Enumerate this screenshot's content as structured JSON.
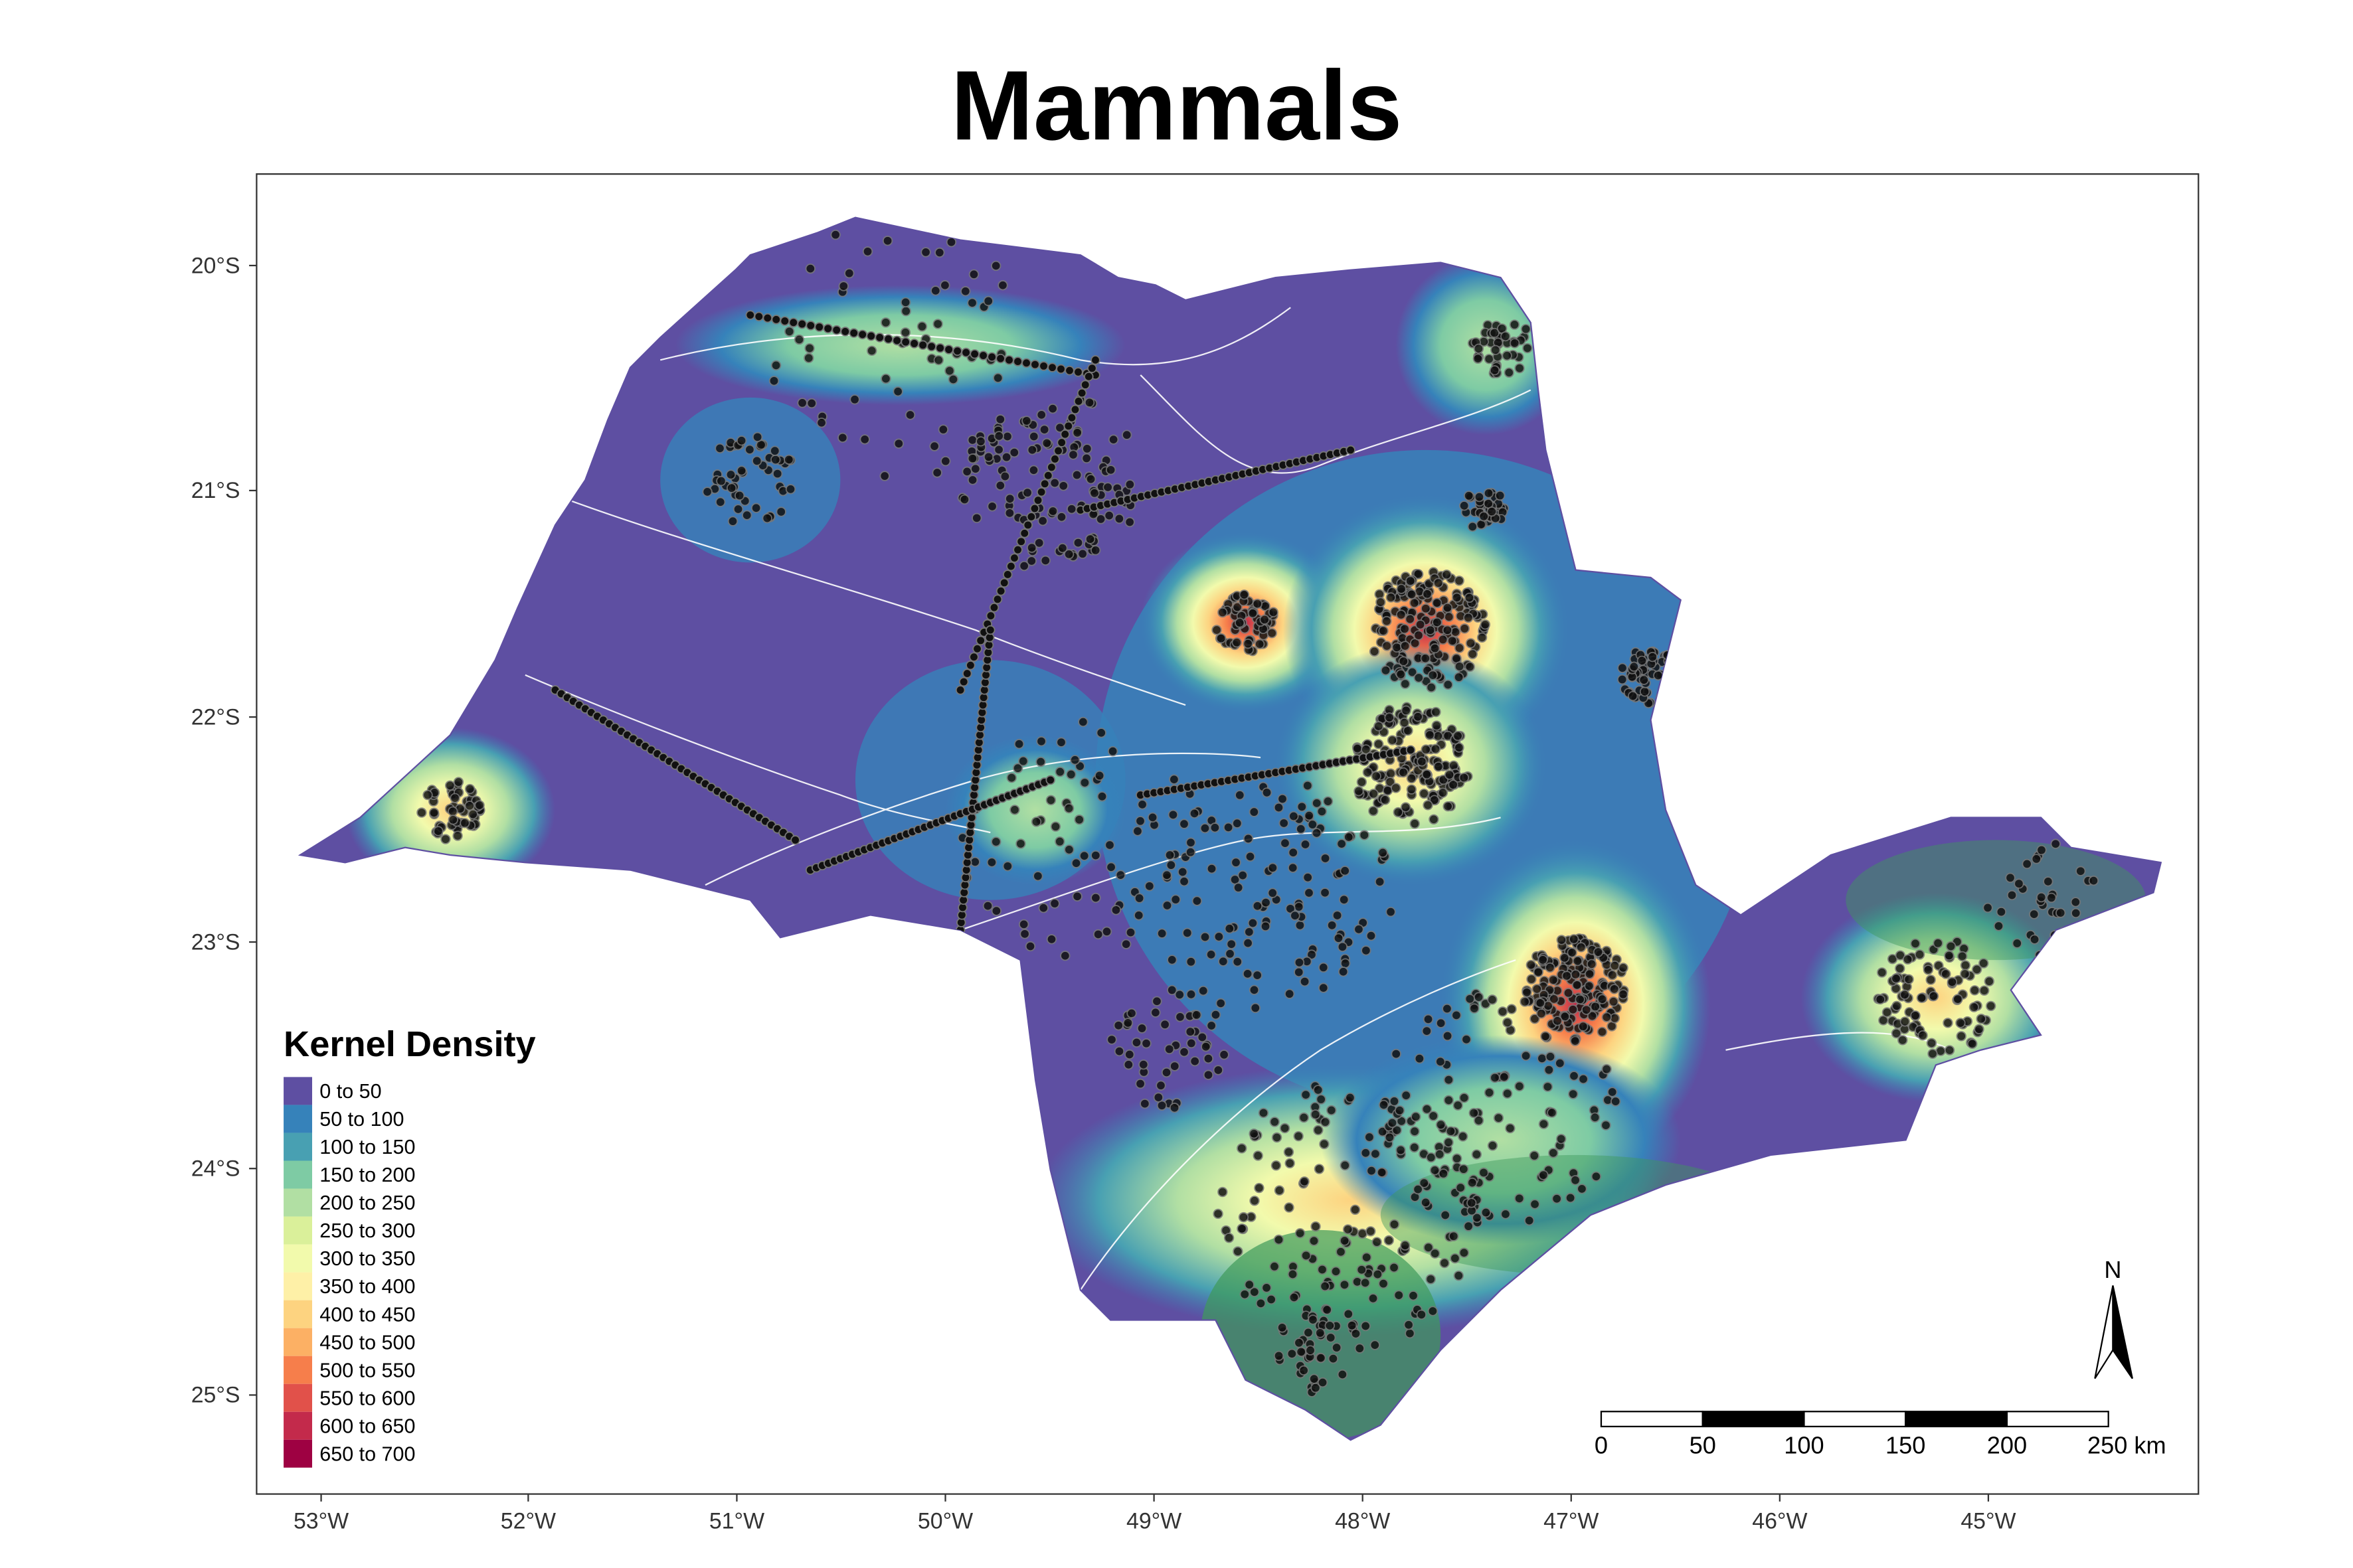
{
  "title": "Mammals",
  "axes": {
    "y_ticks": [
      "20°S",
      "21°S",
      "22°S",
      "23°S",
      "24°S",
      "25°S"
    ],
    "x_ticks": [
      "53°W",
      "52°W",
      "51°W",
      "50°W",
      "49°W",
      "48°W",
      "47°W",
      "46°W",
      "45°W"
    ]
  },
  "legend": {
    "title": "Kernel Density",
    "items": [
      {
        "label": "0 to 50",
        "color": "#5E4FA2"
      },
      {
        "label": "50 to 100",
        "color": "#3682BA"
      },
      {
        "label": "100 to 150",
        "color": "#48A0B2"
      },
      {
        "label": "150 to 200",
        "color": "#7ECBA4"
      },
      {
        "label": "200 to 250",
        "color": "#B1DFA3"
      },
      {
        "label": "250 to 300",
        "color": "#DAF09A"
      },
      {
        "label": "300 to 350",
        "color": "#F2FAAC"
      },
      {
        "label": "350 to 400",
        "color": "#FEF0A7"
      },
      {
        "label": "400 to 450",
        "color": "#FDD380"
      },
      {
        "label": "450 to 500",
        "color": "#FCB064"
      },
      {
        "label": "500 to 550",
        "color": "#F67E4B"
      },
      {
        "label": "550 to 600",
        "color": "#E1514A"
      },
      {
        "label": "600 to 650",
        "color": "#C32A4B"
      },
      {
        "label": "650 to 700",
        "color": "#9E0142"
      }
    ]
  },
  "scale_bar": {
    "labels": [
      "0",
      "50",
      "100",
      "150",
      "200",
      "250 km"
    ]
  },
  "north_arrow": {
    "label": "N"
  }
}
